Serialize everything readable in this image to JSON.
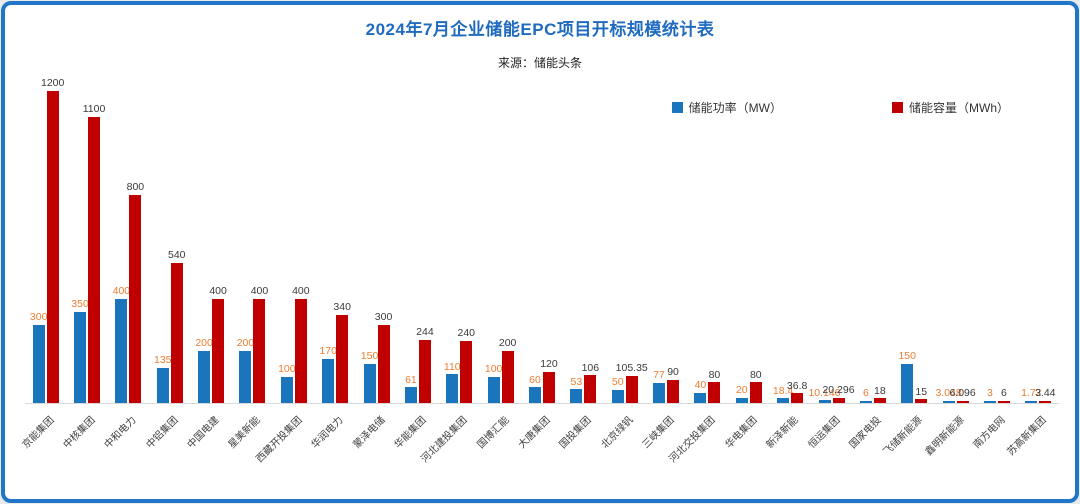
{
  "page": {
    "title": "2024年7月企业储能EPC项目开标规模统计表",
    "source": "来源：储能头条"
  },
  "legend": [
    {
      "label": "储能功率（MW）",
      "color": "#1b75bc"
    },
    {
      "label": "储能容量（MWh）",
      "color": "#c00000"
    }
  ],
  "chart_data": {
    "type": "bar",
    "title": "2024年7月企业储能EPC项目开标规模统计表",
    "subtitle": "来源：储能头条",
    "categories": [
      "京能集团",
      "中核集团",
      "中和电力",
      "中铝集团",
      "中国电建",
      "星美新能",
      "西藏开投集团",
      "华润电力",
      "蒙泽电储",
      "华能集团",
      "河北建投集团",
      "国博汇能",
      "大唐集团",
      "国投集团",
      "北京绿钒",
      "三峡集团",
      "河北交投集团",
      "华电集团",
      "新泽新能",
      "恒运集团",
      "国家电投",
      "飞储新能源",
      "鑫明新能源",
      "南方电网",
      "苏高新集团"
    ],
    "series": [
      {
        "name": "储能功率（MW）",
        "color": "#1b75bc",
        "label_color": "#ed7d31",
        "values": [
          300,
          350,
          400,
          135,
          200,
          200,
          100,
          170,
          150,
          61,
          110,
          100,
          60,
          53,
          50,
          77,
          40,
          20,
          18.4,
          10.148,
          6,
          150,
          3.048,
          3,
          1.72
        ]
      },
      {
        "name": "储能容量（MWh）",
        "color": "#c00000",
        "label_color": "#3a3a3a",
        "values": [
          1200,
          1100,
          800,
          540,
          400,
          400,
          400,
          340,
          300,
          244,
          240,
          200,
          120,
          106,
          105.35,
          90,
          80,
          80,
          36.8,
          20.296,
          18,
          15,
          6.096,
          6,
          3.44
        ]
      }
    ],
    "xlabel": "",
    "ylabel": "",
    "ylim": [
      0,
      1200
    ],
    "grid": false,
    "legend_position": "top-right"
  }
}
